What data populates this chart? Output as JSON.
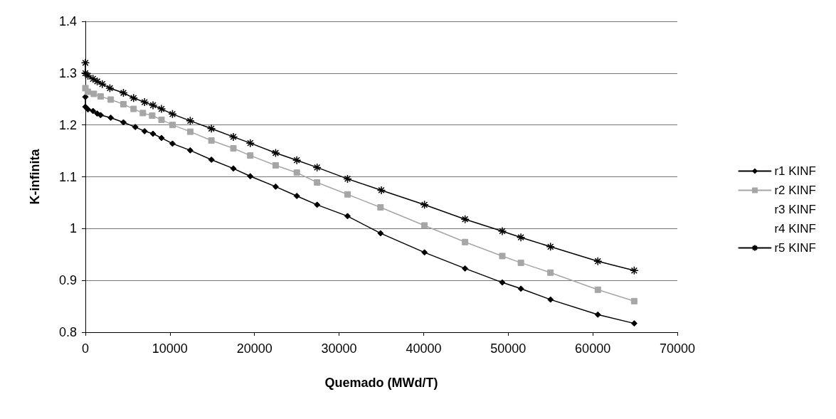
{
  "chart_data": {
    "type": "line",
    "xlabel": "Quemado (MWd/T)",
    "ylabel": "K-infinita",
    "xlim": [
      0,
      70000
    ],
    "xticks": [
      0,
      10000,
      20000,
      30000,
      40000,
      50000,
      60000,
      70000
    ],
    "ylim": [
      0.8,
      1.4
    ],
    "yticks": [
      0.8,
      0.9,
      1,
      1.1,
      1.2,
      1.3,
      1.4
    ],
    "grid": "y",
    "legend": "right",
    "series": [
      {
        "name": "r1 KINF",
        "color": "#000000",
        "marker": "diamond",
        "x": [
          0,
          0,
          300,
          900,
          1400,
          1800,
          3000,
          4500,
          5900,
          7000,
          8000,
          9000,
          10300,
          12400,
          14900,
          17500,
          19500,
          22500,
          25000,
          27400,
          31000,
          34900,
          40100,
          44900,
          49300,
          51500,
          55000,
          60600,
          64900
        ],
        "values": [
          1.254,
          1.235,
          1.23,
          1.227,
          1.222,
          1.219,
          1.214,
          1.205,
          1.196,
          1.188,
          1.183,
          1.175,
          1.164,
          1.151,
          1.133,
          1.116,
          1.101,
          1.081,
          1.063,
          1.046,
          1.024,
          0.991,
          0.954,
          0.923,
          0.896,
          0.884,
          0.863,
          0.834,
          0.817
        ]
      },
      {
        "name": "r2 KINF",
        "color": "#a6a6a6",
        "marker": "square",
        "x": [
          0,
          300,
          1000,
          1800,
          3000,
          4500,
          5700,
          6800,
          7900,
          9000,
          10300,
          12400,
          14900,
          17500,
          19500,
          22500,
          25000,
          27400,
          31000,
          34900,
          40100,
          44900,
          49300,
          51500,
          55000,
          60600,
          64900
        ],
        "values": [
          1.271,
          1.264,
          1.26,
          1.255,
          1.249,
          1.24,
          1.231,
          1.223,
          1.218,
          1.21,
          1.2,
          1.187,
          1.17,
          1.155,
          1.141,
          1.122,
          1.108,
          1.089,
          1.066,
          1.041,
          1.006,
          0.974,
          0.947,
          0.934,
          0.915,
          0.882,
          0.86
        ]
      },
      {
        "name": "r3 KINF"
      },
      {
        "name": "r4 KINF"
      },
      {
        "name": "r5 KINF",
        "color": "#000000",
        "marker": "cross",
        "x": [
          0,
          0,
          300,
          900,
          1400,
          2000,
          2900,
          4500,
          5700,
          7000,
          8000,
          9000,
          10300,
          12400,
          14900,
          17500,
          19500,
          22500,
          25000,
          27400,
          31000,
          35000,
          40100,
          44900,
          49300,
          51500,
          55000,
          60600,
          64900
        ],
        "values": [
          1.32,
          1.3,
          1.295,
          1.289,
          1.284,
          1.279,
          1.271,
          1.262,
          1.252,
          1.244,
          1.238,
          1.231,
          1.221,
          1.208,
          1.193,
          1.177,
          1.165,
          1.146,
          1.132,
          1.118,
          1.096,
          1.074,
          1.046,
          1.018,
          0.995,
          0.983,
          0.965,
          0.937,
          0.919
        ]
      }
    ]
  }
}
